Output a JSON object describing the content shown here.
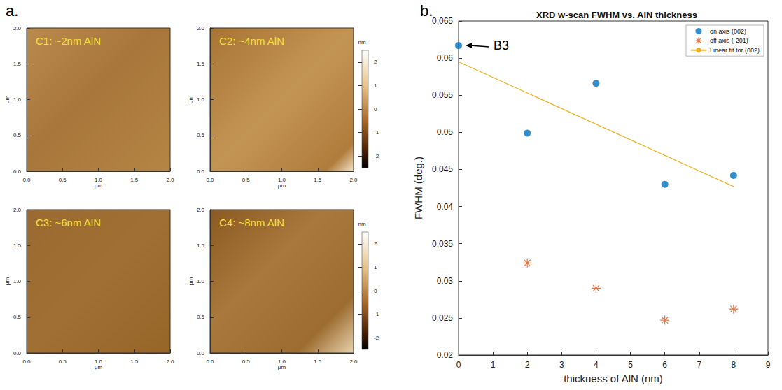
{
  "chart_data": [
    {
      "type": "image",
      "panel_label": "a.",
      "title": "C1: ~2nm AlN",
      "xlabel": "μm",
      "ylabel": "μm",
      "xlim": [
        0,
        2
      ],
      "xticks": [
        {
          "value": 0,
          "label": "0.0"
        },
        {
          "value": 0.5,
          "label": "0.5"
        },
        {
          "value": 1,
          "label": "1.0"
        },
        {
          "value": 1.5,
          "label": "1.5"
        },
        {
          "value": 2,
          "label": "2.0"
        }
      ],
      "ylim": [
        0,
        2
      ],
      "yticks": [
        {
          "value": 0,
          "label": "0.0"
        },
        {
          "value": 0.5,
          "label": "0.5"
        },
        {
          "value": 1,
          "label": "1.0"
        },
        {
          "value": 1.5,
          "label": "1.5"
        },
        {
          "value": 2,
          "label": "2.0"
        }
      ]
    },
    {
      "type": "image",
      "title": "C2: ~4nm AlN",
      "xlabel": "μm",
      "ylabel": "μm",
      "xlim": [
        0,
        2
      ],
      "xticks": [
        {
          "value": 0,
          "label": "0.0"
        },
        {
          "value": 0.5,
          "label": "0.5"
        },
        {
          "value": 1,
          "label": "1.0"
        },
        {
          "value": 1.5,
          "label": "1.5"
        },
        {
          "value": 2,
          "label": "2.0"
        }
      ],
      "ylim": [
        0,
        2
      ],
      "yticks": [
        {
          "value": 0,
          "label": "0.0"
        },
        {
          "value": 0.5,
          "label": "0.5"
        },
        {
          "value": 1,
          "label": "1.0"
        },
        {
          "value": 1.5,
          "label": "1.5"
        },
        {
          "value": 2,
          "label": "2.0"
        }
      ],
      "colorbar_label": "nm",
      "colorbar_range": [
        -2.5,
        2.5
      ],
      "colorbar_ticks": [
        -2,
        -1,
        0,
        1,
        2
      ]
    },
    {
      "type": "image",
      "title": "C3: ~6nm AlN",
      "xlabel": "μm",
      "ylabel": "μm",
      "xlim": [
        0,
        2
      ],
      "xticks": [
        {
          "value": 0,
          "label": "0.0"
        },
        {
          "value": 0.5,
          "label": "0.5"
        },
        {
          "value": 1,
          "label": "1.0"
        },
        {
          "value": 1.5,
          "label": "1.5"
        },
        {
          "value": 2,
          "label": "2.0"
        }
      ],
      "ylim": [
        0,
        2
      ],
      "yticks": [
        {
          "value": 0,
          "label": "0.0"
        },
        {
          "value": 0.5,
          "label": "0.5"
        },
        {
          "value": 1,
          "label": "1.0"
        },
        {
          "value": 1.5,
          "label": "1.5"
        },
        {
          "value": 2,
          "label": "2.0"
        }
      ]
    },
    {
      "type": "image",
      "title": "C4: ~8nm AlN",
      "xlabel": "μm",
      "ylabel": "μm",
      "xlim": [
        0,
        2
      ],
      "xticks": [
        {
          "value": 0,
          "label": "0.0"
        },
        {
          "value": 0.5,
          "label": "0.5"
        },
        {
          "value": 1,
          "label": "1.0"
        },
        {
          "value": 1.5,
          "label": "1.5"
        },
        {
          "value": 2,
          "label": "2.0"
        }
      ],
      "ylim": [
        0,
        2
      ],
      "yticks": [
        {
          "value": 0,
          "label": "0.0"
        },
        {
          "value": 0.5,
          "label": "0.5"
        },
        {
          "value": 1,
          "label": "1.0"
        },
        {
          "value": 1.5,
          "label": "1.5"
        },
        {
          "value": 2,
          "label": "2.0"
        }
      ],
      "colorbar_label": "nm",
      "colorbar_range": [
        -2.5,
        2.5
      ],
      "colorbar_ticks": [
        -2,
        -1,
        0,
        1,
        2
      ]
    },
    {
      "type": "scatter",
      "panel_label": "b.",
      "title": "XRD w-scan FWHM vs. AlN thickness",
      "xlabel": "thickness of AlN (nm)",
      "ylabel": "FWHM (deg.)",
      "xlim": [
        0,
        9
      ],
      "xticks": [
        0,
        1,
        2,
        3,
        4,
        5,
        6,
        7,
        8,
        9
      ],
      "ylim": [
        0.02,
        0.065
      ],
      "yticks": [
        0.02,
        0.025,
        0.03,
        0.035,
        0.04,
        0.045,
        0.05,
        0.055,
        0.06,
        0.065
      ],
      "grid": false,
      "legend": "upper right",
      "series": [
        {
          "name": "on axis (002)",
          "type": "scatter",
          "color": "#0072bd",
          "marker": "circle",
          "x": [
            0,
            2,
            4,
            6,
            8
          ],
          "values": [
            0.0617,
            0.0499,
            0.0566,
            0.043,
            0.0442
          ]
        },
        {
          "name": "off axis (-201)",
          "type": "scatter",
          "color": "#d95319",
          "marker": "asterisk",
          "x": [
            2,
            4,
            6,
            8
          ],
          "values": [
            0.0324,
            0.029,
            0.0247,
            0.0262
          ]
        },
        {
          "name": "Linear fit for (002)",
          "type": "line",
          "color": "#edb120",
          "marker": "none",
          "x": [
            0,
            8
          ],
          "values": [
            0.0595,
            0.0427
          ]
        }
      ],
      "annotations": [
        {
          "text": "B3",
          "x": 0,
          "y": 0.0617
        }
      ]
    }
  ]
}
